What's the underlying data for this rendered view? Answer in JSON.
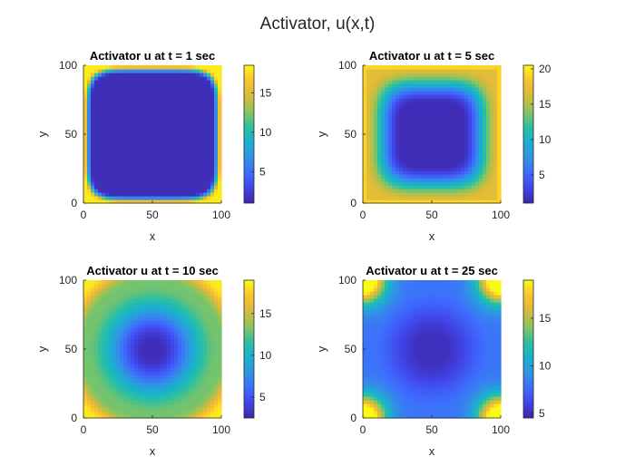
{
  "figure": {
    "title": "Activator, u(x,t)",
    "colormap": [
      "#3e26a8",
      "#4145e8",
      "#3e6dfe",
      "#2f96e1",
      "#17b2ce",
      "#2ec09f",
      "#8ec45c",
      "#d8ba3c",
      "#fdc130",
      "#f9fb15"
    ]
  },
  "chart_data": [
    {
      "type": "heatmap",
      "title": "Activator u at t = 1 sec",
      "xlabel": "x",
      "ylabel": "y",
      "xlim": [
        0,
        100
      ],
      "ylim": [
        0,
        100
      ],
      "xticks": [
        0,
        50,
        100
      ],
      "yticks": [
        0,
        50,
        100
      ],
      "clim": [
        1,
        18.5
      ],
      "colorbar_ticks": [
        5,
        10,
        15
      ],
      "pattern": "concave square plateau, low interior, high values only in a thin band at the edges",
      "interior_value": 1.5,
      "edge_value": 18
    },
    {
      "type": "heatmap",
      "title": "Activator u at t = 5 sec",
      "xlabel": "x",
      "ylabel": "y",
      "xlim": [
        0,
        100
      ],
      "ylim": [
        0,
        100
      ],
      "xticks": [
        0,
        50,
        100
      ],
      "yticks": [
        0,
        50,
        100
      ],
      "clim": [
        1,
        20.5
      ],
      "colorbar_ticks": [
        5,
        10,
        15,
        20
      ],
      "pattern": "low centre, wide high band along the edges",
      "interior_value": 1.5,
      "edge_value": 19.5
    },
    {
      "type": "heatmap",
      "title": "Activator u at t = 10 sec",
      "xlabel": "x",
      "ylabel": "y",
      "xlim": [
        0,
        100
      ],
      "ylim": [
        0,
        100
      ],
      "xticks": [
        0,
        50,
        100
      ],
      "yticks": [
        0,
        50,
        100
      ],
      "clim": [
        2.5,
        19
      ],
      "colorbar_ticks": [
        5,
        10,
        15
      ],
      "pattern": "low centre, mid ring, high corners",
      "interior_value": 3,
      "edge_value": 13,
      "corner_value": 18.5
    },
    {
      "type": "heatmap",
      "title": "Activator u at t = 25 sec",
      "xlabel": "x",
      "ylabel": "y",
      "xlim": [
        0,
        100
      ],
      "ylim": [
        0,
        100
      ],
      "xticks": [
        0,
        50,
        100
      ],
      "yticks": [
        0,
        50,
        100
      ],
      "clim": [
        4.5,
        19
      ],
      "colorbar_ticks": [
        5,
        10,
        15
      ],
      "pattern": "low centre and low mid-edges, high spots at the four corners",
      "interior_value": 5,
      "edge_value": 8,
      "corner_value": 18.5
    }
  ]
}
